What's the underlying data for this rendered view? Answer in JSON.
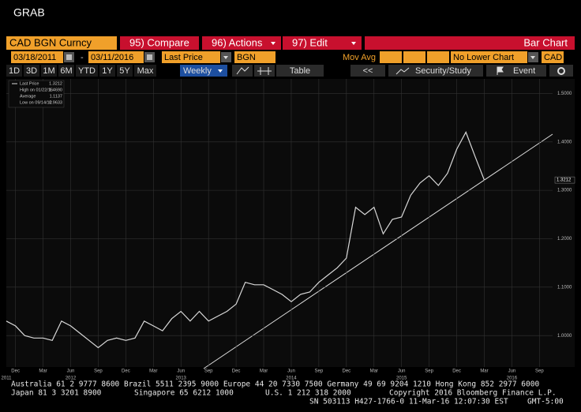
{
  "ui": {
    "window_title": "GRAB",
    "ticker": "CAD BGN Curncy",
    "menu": [
      "95) Compare",
      "96) Actions",
      "97) Edit"
    ],
    "chart_kind": "Bar Chart",
    "start_date": "03/18/2011",
    "date_separator": "-",
    "end_date": "03/11/2016",
    "field": "Last Price",
    "source": "BGN",
    "mov_avg": "Mov Avg",
    "lower_chart": "No Lower Chart",
    "currency": "CAD",
    "periods": [
      "1D",
      "3D",
      "1M",
      "6M",
      "YTD",
      "1Y",
      "5Y",
      "Max"
    ],
    "frequency": "Weekly",
    "table": "Table",
    "back": "<<",
    "security_study": "Security/Study",
    "event": "Event",
    "footer": [
      [
        "Australia 61 2 9777 8600 Brazil 5511 2395 9000 Europe 44 20 7330 7500 Germany 49 69 9204 1210 Hong Kong 852 2977 6000"
      ],
      [
        "Japan 81 3 3201 8900",
        "Singapore 65 6212 1000",
        "U.S. 1 212 318 2000",
        "Copyright 2016 Bloomberg Finance L.P."
      ],
      [
        "SN 503113 H427-1766-0 11-Mar-16 12:07:30 EST",
        "GMT-5:00"
      ]
    ]
  },
  "chart_data": {
    "type": "line",
    "color": "#d8d8d8",
    "x": [
      "2011-11",
      "2011-12",
      "2012-01",
      "2012-02",
      "2012-03",
      "2012-04",
      "2012-05",
      "2012-06",
      "2012-07",
      "2012-08",
      "2012-09",
      "2012-10",
      "2012-11",
      "2012-12",
      "2013-01",
      "2013-02",
      "2013-03",
      "2013-04",
      "2013-05",
      "2013-06",
      "2013-07",
      "2013-08",
      "2013-09",
      "2013-10",
      "2013-11",
      "2013-12",
      "2014-01",
      "2014-02",
      "2014-03",
      "2014-04",
      "2014-05",
      "2014-06",
      "2014-07",
      "2014-08",
      "2014-09",
      "2014-10",
      "2014-11",
      "2014-12",
      "2015-01",
      "2015-02",
      "2015-03",
      "2015-04",
      "2015-05",
      "2015-06",
      "2015-07",
      "2015-08",
      "2015-09",
      "2015-10",
      "2015-11",
      "2015-12",
      "2016-01",
      "2016-02",
      "2016-03"
    ],
    "values": [
      1.03,
      1.02,
      1.0,
      0.995,
      0.995,
      0.99,
      1.03,
      1.02,
      1.005,
      0.99,
      0.975,
      0.99,
      0.995,
      0.99,
      0.995,
      1.03,
      1.02,
      1.01,
      1.035,
      1.05,
      1.03,
      1.05,
      1.03,
      1.04,
      1.05,
      1.065,
      1.11,
      1.105,
      1.105,
      1.095,
      1.085,
      1.07,
      1.085,
      1.09,
      1.11,
      1.125,
      1.14,
      1.16,
      1.265,
      1.25,
      1.265,
      1.21,
      1.24,
      1.245,
      1.29,
      1.315,
      1.33,
      1.31,
      1.335,
      1.385,
      1.42,
      1.37,
      1.3212
    ],
    "xlim": [
      "2011-11",
      "2016-10"
    ],
    "ylim": [
      0.94,
      1.53
    ],
    "yticks": [
      {
        "value": 1.0,
        "label": "1.0000"
      },
      {
        "value": 1.1,
        "label": "1.1000"
      },
      {
        "value": 1.2,
        "label": "1.2000"
      },
      {
        "value": 1.3,
        "label": "1.3000"
      },
      {
        "value": 1.4,
        "label": "1.4000"
      },
      {
        "value": 1.5,
        "label": "1.5000"
      }
    ],
    "xticks": [
      {
        "value": "2011-12",
        "label": "Dec"
      },
      {
        "value": "2012-03",
        "label": "Mar"
      },
      {
        "value": "2012-06",
        "label": "Jun"
      },
      {
        "value": "2012-09",
        "label": "Sep"
      },
      {
        "value": "2012-12",
        "label": "Dec"
      },
      {
        "value": "2013-03",
        "label": "Mar"
      },
      {
        "value": "2013-06",
        "label": "Jun"
      },
      {
        "value": "2013-09",
        "label": "Sep"
      },
      {
        "value": "2013-12",
        "label": "Dec"
      },
      {
        "value": "2014-03",
        "label": "Mar"
      },
      {
        "value": "2014-06",
        "label": "Jun"
      },
      {
        "value": "2014-09",
        "label": "Sep"
      },
      {
        "value": "2014-12",
        "label": "Dec"
      },
      {
        "value": "2015-03",
        "label": "Mar"
      },
      {
        "value": "2015-06",
        "label": "Jun"
      },
      {
        "value": "2015-09",
        "label": "Sep"
      },
      {
        "value": "2015-12",
        "label": "Dec"
      },
      {
        "value": "2016-03",
        "label": "Mar"
      },
      {
        "value": "2016-06",
        "label": "Jun"
      },
      {
        "value": "2016-09",
        "label": "Sep"
      }
    ],
    "year_ticks": [
      {
        "value": "2011-11",
        "label": "2011"
      },
      {
        "value": "2012-06",
        "label": "2012"
      },
      {
        "value": "2013-06",
        "label": "2013"
      },
      {
        "value": "2014-06",
        "label": "2014"
      },
      {
        "value": "2015-06",
        "label": "2015"
      },
      {
        "value": "2016-06",
        "label": "2016"
      }
    ],
    "grid": true,
    "legend_box": [
      {
        "label": "Last Price",
        "value": "1.3212"
      },
      {
        "label": "High on 01/22/16",
        "value": "1.4690"
      },
      {
        "label": "Average",
        "value": "1.1137"
      },
      {
        "label": "Low on 09/14/12",
        "value": "0.9633"
      }
    ]
  }
}
